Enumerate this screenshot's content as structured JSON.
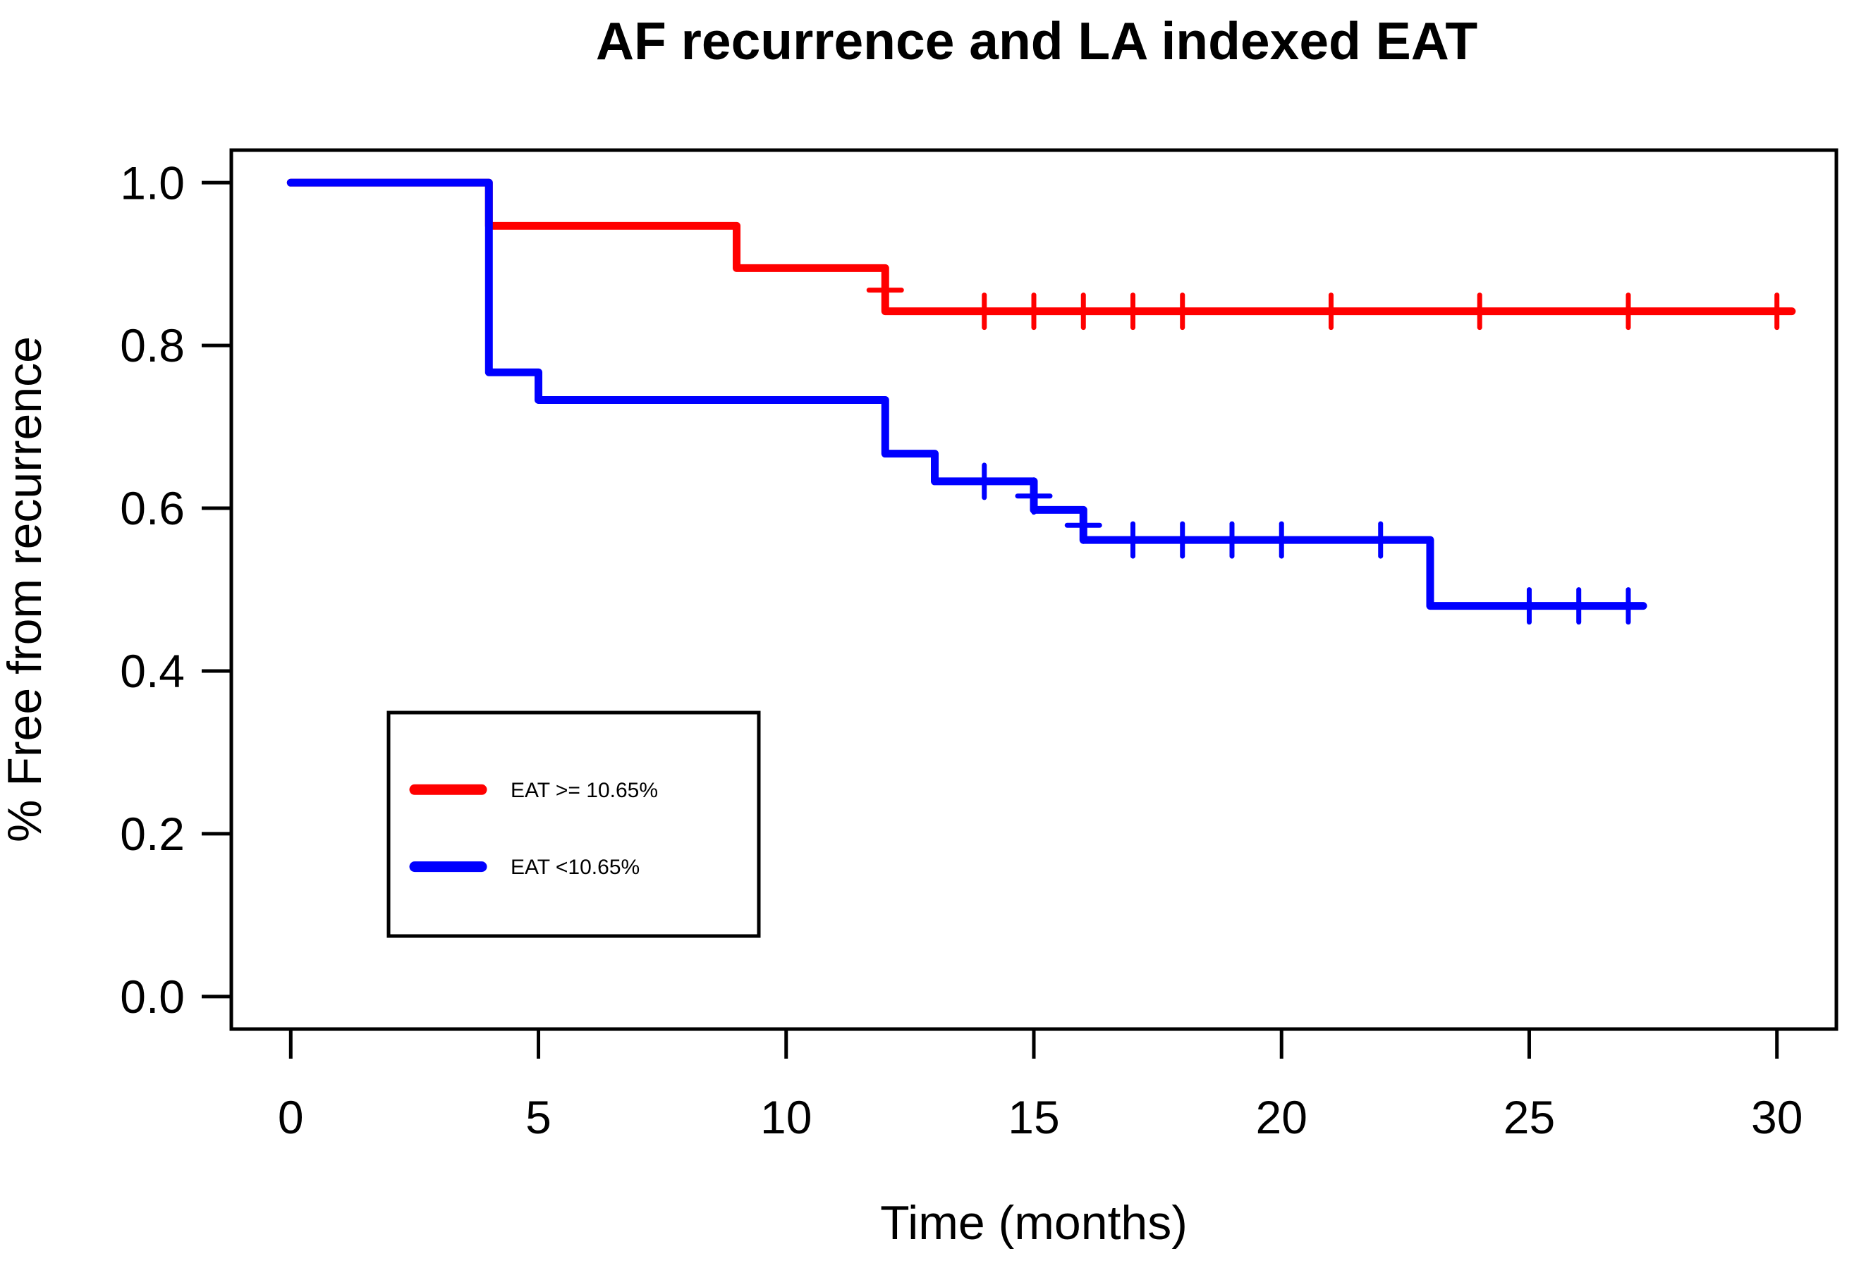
{
  "figure": {
    "background": "#FFFFFF",
    "frame_color": "#000000"
  },
  "chart_data": {
    "type": "line",
    "subtype": "kaplan-meier-step",
    "title": "AF recurrence and LA indexed EAT",
    "xlabel": "Time (months)",
    "ylabel": "% Free from recurrence",
    "xlim": [
      0,
      30
    ],
    "ylim": [
      0.0,
      1.0
    ],
    "grid": "off",
    "x_ticks": [
      {
        "value": 0,
        "label": "0"
      },
      {
        "value": 5,
        "label": "5"
      },
      {
        "value": 10,
        "label": "10"
      },
      {
        "value": 15,
        "label": "15"
      },
      {
        "value": 20,
        "label": "20"
      },
      {
        "value": 25,
        "label": "25"
      },
      {
        "value": 30,
        "label": "30"
      }
    ],
    "y_ticks": [
      {
        "value": 0.0,
        "label": "0.0"
      },
      {
        "value": 0.2,
        "label": "0.2"
      },
      {
        "value": 0.4,
        "label": "0.4"
      },
      {
        "value": 0.6,
        "label": "0.6"
      },
      {
        "value": 0.8,
        "label": "0.8"
      },
      {
        "value": 1.0,
        "label": "1.0"
      }
    ],
    "series": [
      {
        "id": "high-eat",
        "name": "EAT >= 10.65%",
        "color": "#FF0000",
        "step_points": [
          [
            0,
            1.0
          ],
          [
            4,
            0.947
          ],
          [
            9,
            0.895
          ],
          [
            12,
            0.842
          ]
        ],
        "end_time": 30.3,
        "censor_marks": [
          [
            12,
            0.868
          ],
          [
            14,
            0.842
          ],
          [
            15,
            0.842
          ],
          [
            16,
            0.842
          ],
          [
            17,
            0.842
          ],
          [
            18,
            0.842
          ],
          [
            21,
            0.842
          ],
          [
            24,
            0.842
          ],
          [
            27,
            0.842
          ],
          [
            30,
            0.842
          ]
        ]
      },
      {
        "id": "low-eat",
        "name": "EAT <10.65%",
        "color": "#0000FF",
        "step_points": [
          [
            0,
            1.0
          ],
          [
            4,
            0.767
          ],
          [
            5,
            0.733
          ],
          [
            12,
            0.667
          ],
          [
            13,
            0.633
          ],
          [
            15,
            0.598
          ],
          [
            16,
            0.561
          ],
          [
            23,
            0.48
          ]
        ],
        "end_time": 27.3,
        "censor_marks": [
          [
            14,
            0.633
          ],
          [
            15,
            0.615
          ],
          [
            16,
            0.579
          ],
          [
            17,
            0.561
          ],
          [
            18,
            0.561
          ],
          [
            19,
            0.561
          ],
          [
            20,
            0.561
          ],
          [
            22,
            0.561
          ],
          [
            25,
            0.48
          ],
          [
            26,
            0.48
          ],
          [
            27,
            0.48
          ]
        ]
      }
    ],
    "legend": {
      "position": "inside-lower-left",
      "entries": [
        {
          "label": "EAT >= 10.65%",
          "color": "#FF0000"
        },
        {
          "label": "EAT <10.65%",
          "color": "#0000FF"
        }
      ]
    }
  }
}
